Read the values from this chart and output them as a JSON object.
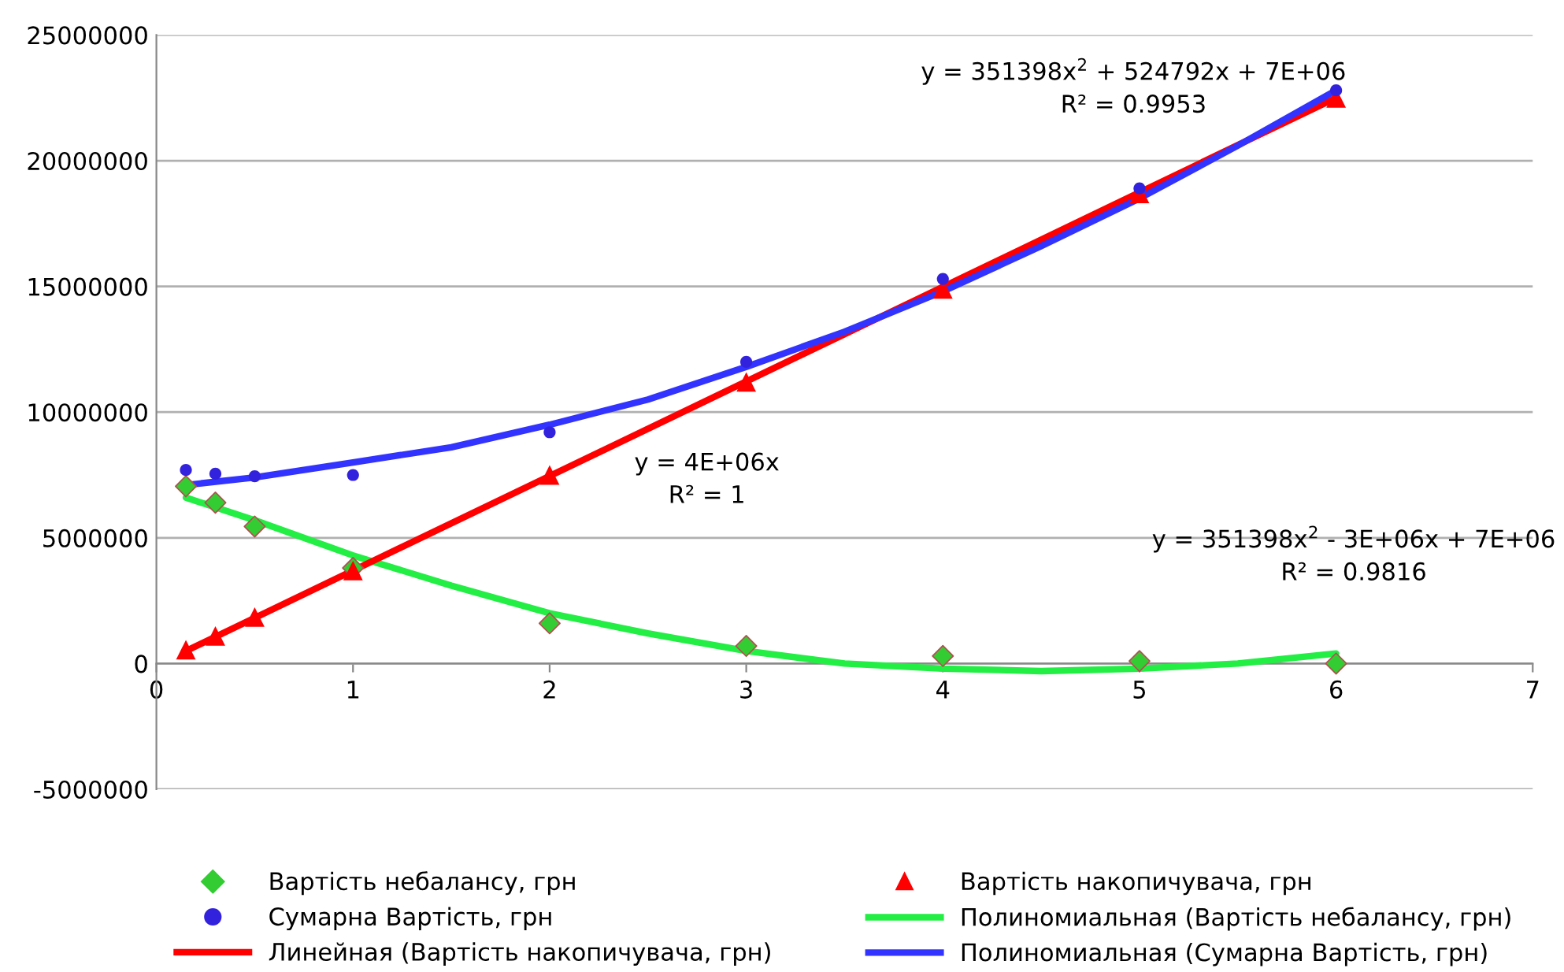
{
  "chart_data": {
    "type": "scatter",
    "xlim": [
      0,
      7
    ],
    "ylim": [
      -5000000,
      25000000
    ],
    "xticks": [
      0,
      1,
      2,
      3,
      4,
      5,
      6,
      7
    ],
    "yticks": [
      -5000000,
      0,
      5000000,
      10000000,
      15000000,
      20000000,
      25000000
    ],
    "grid": "y",
    "legend": "bottom",
    "series": [
      {
        "name": "Вартість небалансу, грн",
        "marker": "diamond",
        "color": "#33cc33",
        "x": [
          0.15,
          0.3,
          0.5,
          1,
          2,
          3,
          4,
          5,
          6
        ],
        "values": [
          7050000,
          6400000,
          5450000,
          3800000,
          1600000,
          700000,
          300000,
          100000,
          0
        ]
      },
      {
        "name": "Вартість накопичувача, грн",
        "marker": "triangle",
        "color": "#ff0000",
        "x": [
          0.15,
          0.3,
          0.5,
          1,
          2,
          3,
          4,
          5,
          6
        ],
        "values": [
          550000,
          1100000,
          1850000,
          3700000,
          7500000,
          11200000,
          14900000,
          18700000,
          22500000
        ]
      },
      {
        "name": "Сумарна Вартість, грн",
        "marker": "circle",
        "color": "#3322dd",
        "x": [
          0.15,
          0.3,
          0.5,
          1,
          2,
          3,
          4,
          5,
          6
        ],
        "values": [
          7700000,
          7550000,
          7450000,
          7500000,
          9200000,
          12000000,
          15300000,
          18900000,
          22800000
        ]
      },
      {
        "name": "Полиномиальная (Вартість небалансу, грн)",
        "type": "line",
        "color": "#22ee44",
        "x": [
          0.15,
          0.5,
          1,
          1.5,
          2,
          2.5,
          3,
          3.5,
          4,
          4.5,
          5,
          5.5,
          6
        ],
        "values": [
          6600000,
          5700000,
          4300000,
          3100000,
          2000000,
          1200000,
          500000,
          0,
          -200000,
          -300000,
          -200000,
          0,
          400000
        ]
      },
      {
        "name": "Линейная (Вартість накопичувача, грн)",
        "type": "line",
        "color": "#ff0000",
        "x": [
          0.15,
          6
        ],
        "values": [
          500000,
          22500000
        ]
      },
      {
        "name": "Полиномиальная (Сумарна Вартість, грн)",
        "type": "line",
        "color": "#3333ff",
        "x": [
          0.15,
          0.5,
          1,
          1.5,
          2,
          2.5,
          3,
          3.5,
          4,
          4.5,
          5,
          5.5,
          6
        ],
        "values": [
          7100000,
          7400000,
          8000000,
          8600000,
          9500000,
          10500000,
          11800000,
          13200000,
          14800000,
          16600000,
          18500000,
          20600000,
          22800000
        ]
      }
    ],
    "annotations": [
      "y = 351398x$^{2}$ + 524792x + 7E+06\nR² = 0.9953",
      "y = 4E+06x\nR² = 1",
      "y = 351398x$^{2}$ - 3E+06x + 7E+06\nR² = 0.9816"
    ]
  }
}
